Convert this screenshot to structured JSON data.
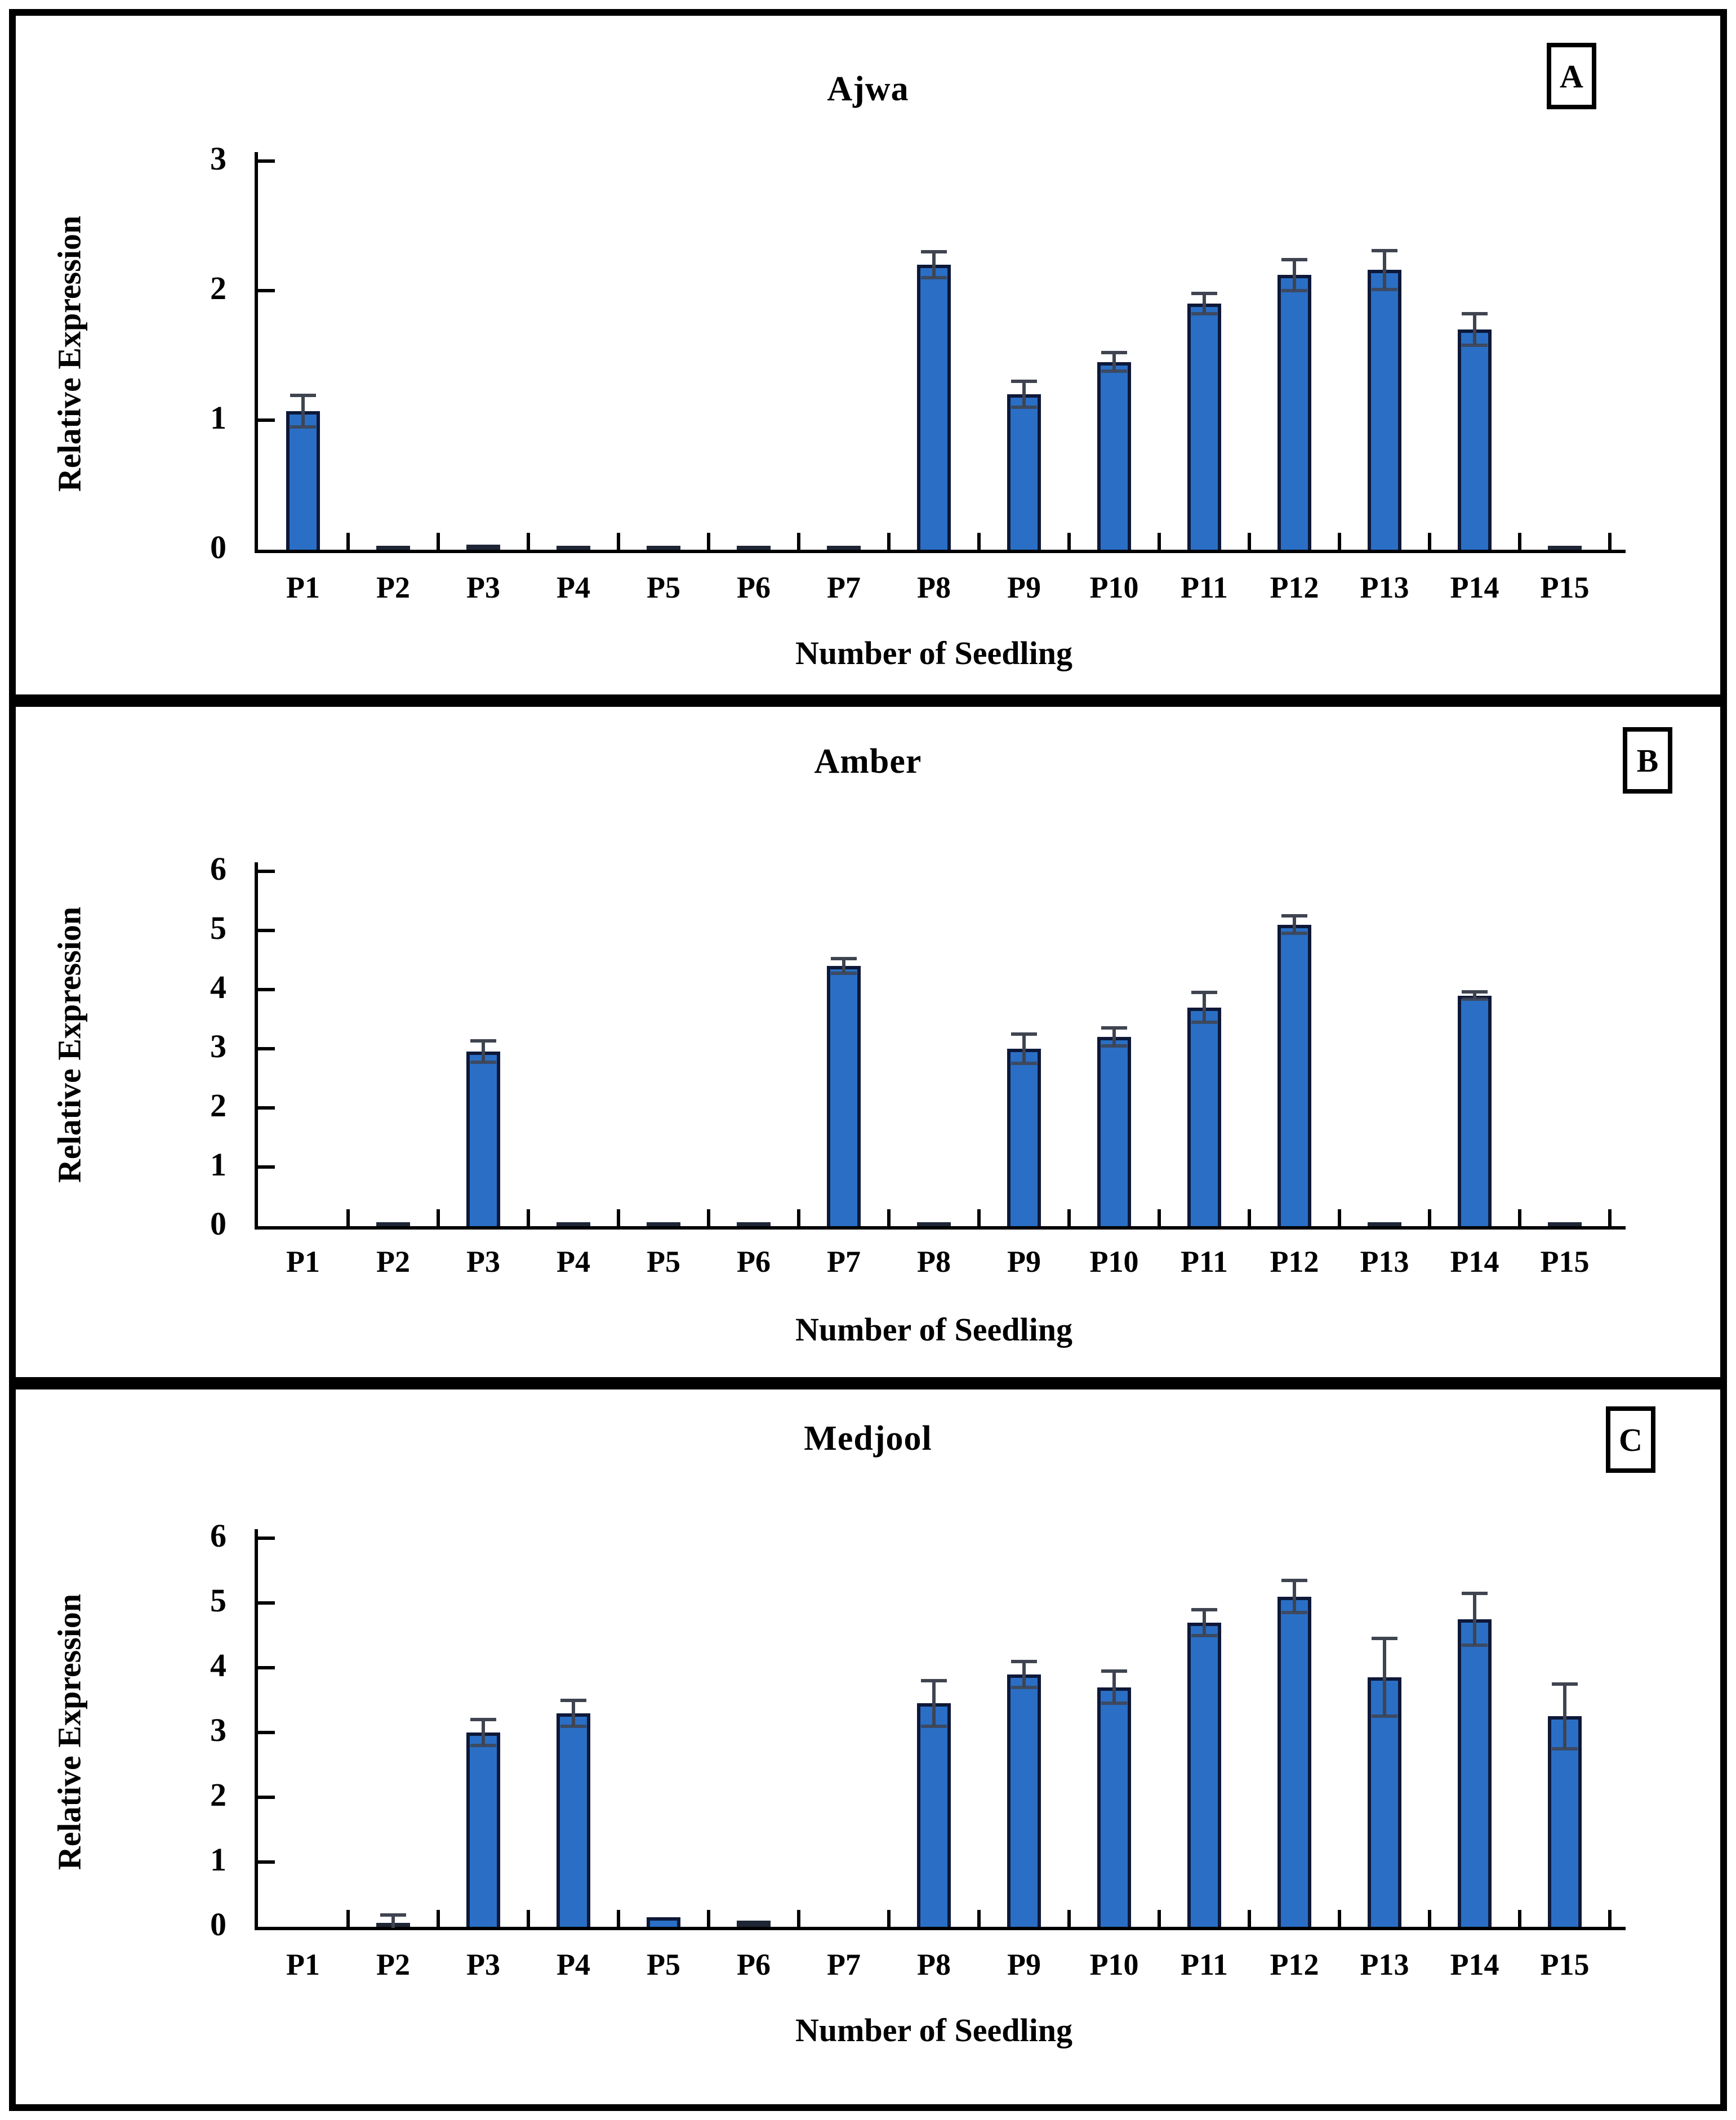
{
  "figure": {
    "panel_letters": [
      "A",
      "B",
      "C"
    ],
    "panel_titles": [
      "Ajwa",
      "Amber",
      "Medjool"
    ]
  },
  "style": {
    "bar_fill": "#2A6FC5",
    "bar_border": "#0E1838",
    "dash_color": "#1E2636",
    "error_color": "#3F4450",
    "axis_color": "#000000",
    "text_color": "#000000",
    "frame_color": "#000000",
    "background": "#FFFFFF"
  },
  "chart_data": [
    {
      "type": "bar",
      "panel_label": "A",
      "title": "Ajwa",
      "xlabel": "Number of Seedling",
      "ylabel": "Relative Expression",
      "ylim": [
        0,
        3
      ],
      "yticks": [
        0,
        1,
        2,
        3
      ],
      "grid": false,
      "legend": "none",
      "categories": [
        "P1",
        "P2",
        "P3",
        "P4",
        "P5",
        "P6",
        "P7",
        "P8",
        "P9",
        "P10",
        "P11",
        "P12",
        "P13",
        "P14",
        "P15"
      ],
      "values": [
        1.07,
        0.02,
        0.04,
        0.02,
        0.02,
        0.02,
        0.02,
        2.2,
        1.2,
        1.45,
        1.9,
        2.12,
        2.16,
        1.7,
        0.02
      ],
      "errors": [
        0.12,
        0,
        0,
        0,
        0,
        0,
        0,
        0.1,
        0.1,
        0.07,
        0.08,
        0.12,
        0.15,
        0.12,
        0
      ]
    },
    {
      "type": "bar",
      "panel_label": "B",
      "title": "Amber",
      "xlabel": "Number of Seedling",
      "ylabel": "Relative Expression",
      "ylim": [
        0,
        6
      ],
      "yticks": [
        0,
        1,
        2,
        3,
        4,
        5,
        6
      ],
      "grid": false,
      "legend": "none",
      "categories": [
        "P1",
        "P2",
        "P3",
        "P4",
        "P5",
        "P6",
        "P7",
        "P8",
        "P9",
        "P10",
        "P11",
        "P12",
        "P13",
        "P14",
        "P15"
      ],
      "values": [
        0,
        0.03,
        2.95,
        0.03,
        0.04,
        0.04,
        4.4,
        0.04,
        3.0,
        3.2,
        3.7,
        5.1,
        0.04,
        3.9,
        0.04
      ],
      "errors": [
        0,
        0,
        0.18,
        0,
        0,
        0,
        0.12,
        0,
        0.25,
        0.15,
        0.25,
        0.15,
        0,
        0.06,
        0
      ]
    },
    {
      "type": "bar",
      "panel_label": "C",
      "title": "Medjool",
      "xlabel": "Number of Seedling",
      "ylabel": "Relative Expression",
      "ylim": [
        0,
        6
      ],
      "yticks": [
        0,
        1,
        2,
        3,
        4,
        5,
        6
      ],
      "grid": false,
      "legend": "none",
      "categories": [
        "P1",
        "P2",
        "P3",
        "P4",
        "P5",
        "P6",
        "P7",
        "P8",
        "P9",
        "P10",
        "P11",
        "P12",
        "P13",
        "P14",
        "P15"
      ],
      "values": [
        0,
        0.05,
        3.0,
        3.3,
        0.15,
        0.1,
        0,
        3.45,
        3.9,
        3.7,
        4.7,
        5.1,
        3.85,
        4.75,
        3.25
      ],
      "errors": [
        0,
        0.13,
        0.2,
        0.2,
        0,
        0,
        0,
        0.35,
        0.2,
        0.25,
        0.2,
        0.25,
        0.6,
        0.4,
        0.5
      ]
    }
  ]
}
